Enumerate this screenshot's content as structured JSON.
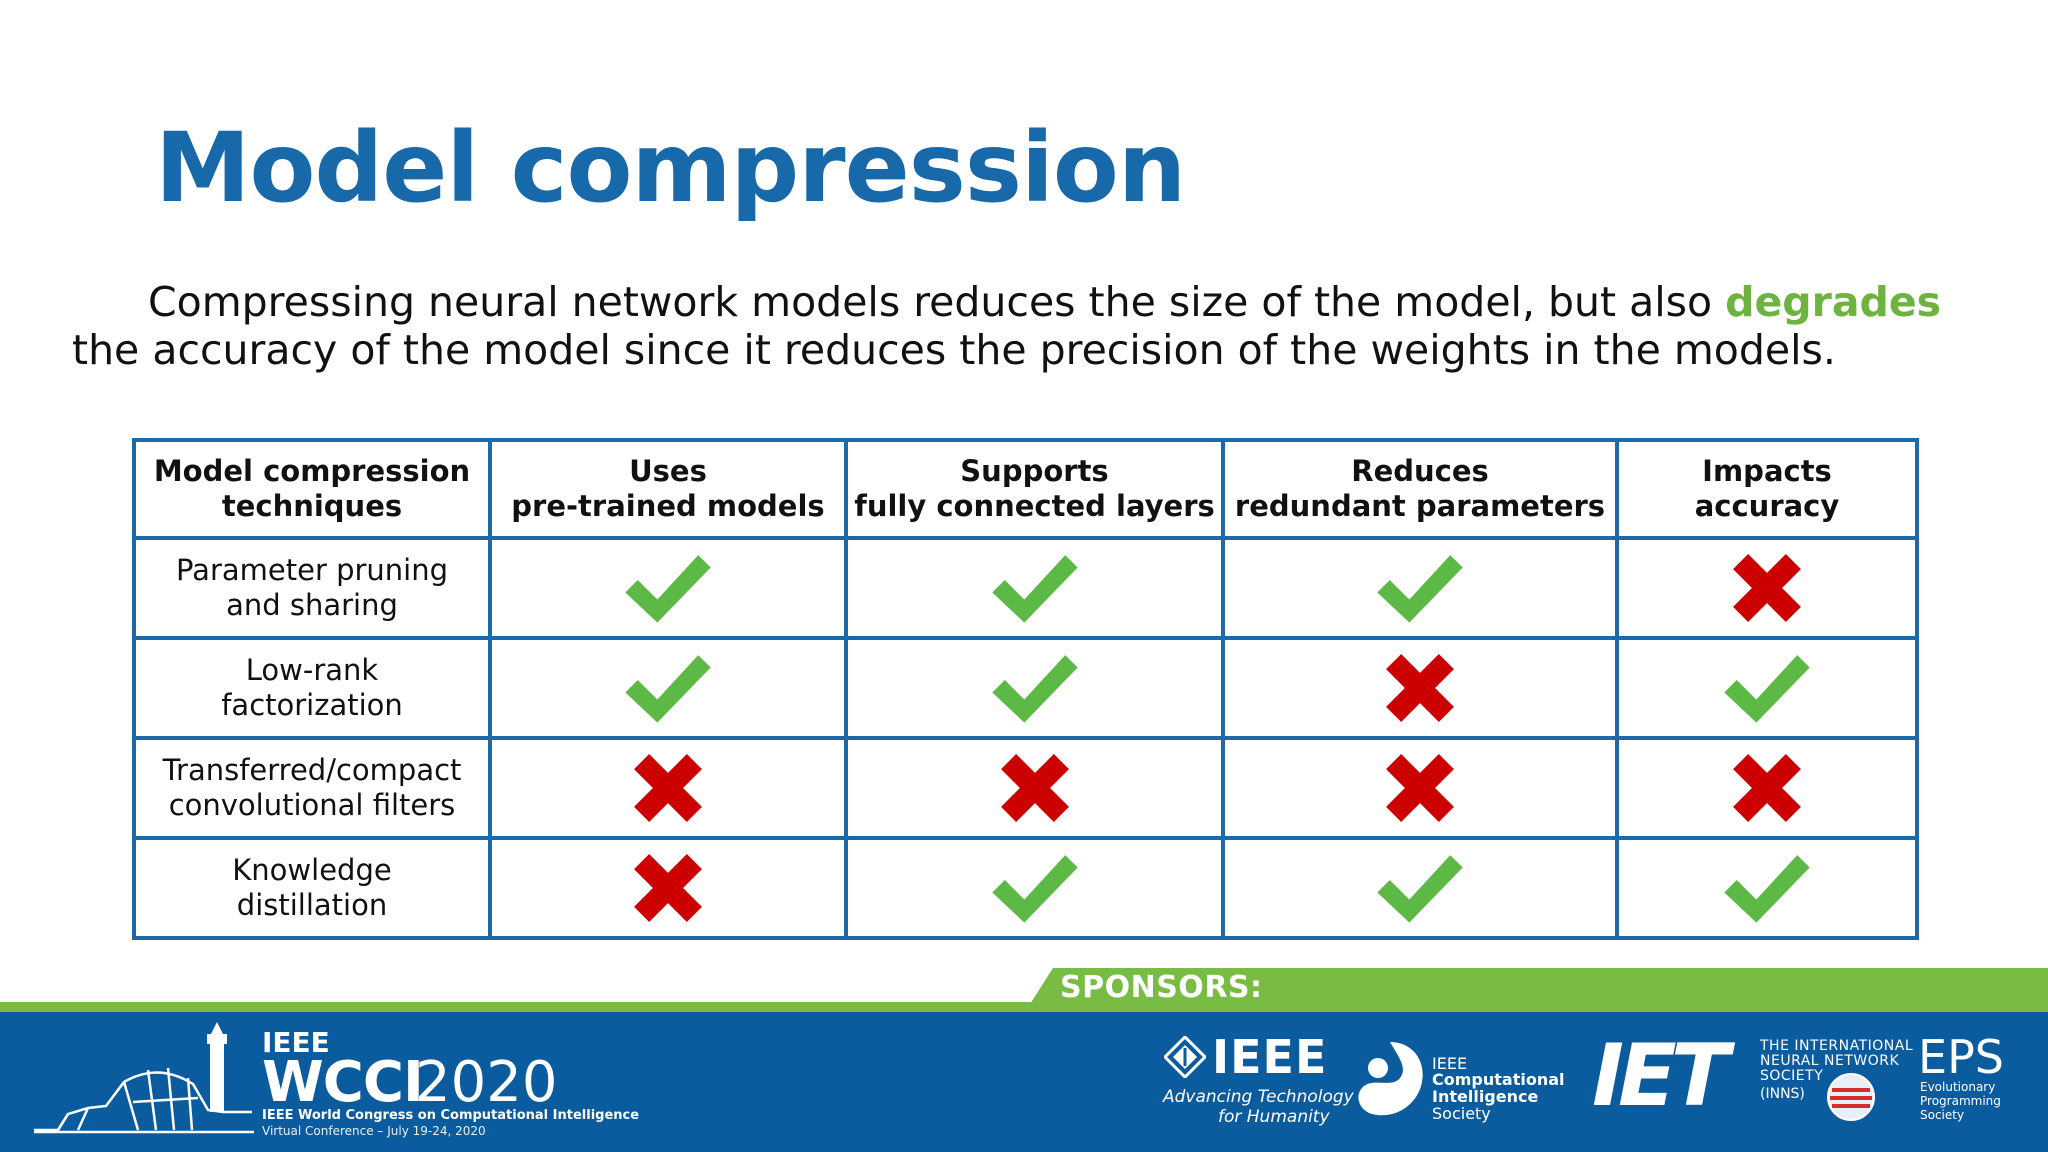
{
  "slide": {
    "title": "Model compression",
    "intro_before": "Compressing neural network models reduces the size of the model, but also ",
    "intro_highlight": "degrades",
    "intro_after": " the accuracy of the model since it reduces the precision of the weights in the models.",
    "highlight_color": "#6cb33f",
    "title_color": "#1769aa"
  },
  "table": {
    "headers": [
      {
        "line1": "Model compression",
        "line2": "techniques"
      },
      {
        "line1": "Uses",
        "line2": "pre-trained models"
      },
      {
        "line1": "Supports",
        "line2": "fully connected layers"
      },
      {
        "line1": "Reduces",
        "line2": "redundant parameters"
      },
      {
        "line1": "Impacts",
        "line2": "accuracy"
      }
    ],
    "rows": [
      {
        "line1": "Parameter pruning",
        "line2": "and sharing",
        "marks": [
          "check",
          "check",
          "check",
          "cross"
        ]
      },
      {
        "line1": "Low-rank",
        "line2": "factorization",
        "marks": [
          "check",
          "check",
          "cross",
          "check"
        ]
      },
      {
        "line1": "Transferred/compact",
        "line2": "convolutional filters",
        "marks": [
          "cross",
          "cross",
          "cross",
          "cross"
        ]
      },
      {
        "line1": "Knowledge",
        "line2": "distillation",
        "marks": [
          "cross",
          "check",
          "check",
          "check"
        ]
      }
    ],
    "check_color": "#5cb946",
    "cross_color": "#cc0000",
    "border_color": "#1e6aa8"
  },
  "footer": {
    "sponsors_label": "SPONSORS:",
    "conference_org": "IEEE",
    "conference_name": "WCCI",
    "conference_year": "2020",
    "conference_subtitle": "IEEE World Congress on Computational Intelligence",
    "conference_dates": "Virtual Conference – July 19-24, 2020",
    "ieee_wordmark": "IEEE",
    "ieee_tagline_1": "Advancing Technology",
    "ieee_tagline_2": "for Humanity",
    "cis_line1": "IEEE",
    "cis_line2": "Computational",
    "cis_line3": "Intelligence",
    "cis_line4": "Society",
    "iet_wordmark": "IET",
    "inns_line1": "THE INTERNATIONAL",
    "inns_line2": "NEURAL NETWORK",
    "inns_line3": "SOCIETY",
    "inns_line4": "(INNS)",
    "eps_wordmark": "EPS",
    "eps_line1": "Evolutionary",
    "eps_line2": "Programming",
    "eps_line3": "Society",
    "bar_color": "#79bc43",
    "footer_color": "#0b5c9e"
  }
}
